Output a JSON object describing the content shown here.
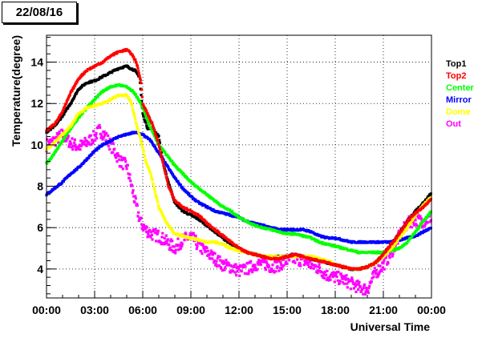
{
  "header": {
    "date_label": "22/08/16"
  },
  "chart_data": {
    "type": "scatter",
    "title": "",
    "xlabel": "Universal Time",
    "ylabel": "Temperature(degree)",
    "xlim": [
      0,
      24
    ],
    "ylim": [
      2.6,
      15.3
    ],
    "x_unit": "hours (UT)",
    "x_ticks": [
      {
        "v": 0,
        "label": "00:00"
      },
      {
        "v": 3,
        "label": "03:00"
      },
      {
        "v": 6,
        "label": "06:00"
      },
      {
        "v": 9,
        "label": "09:00"
      },
      {
        "v": 12,
        "label": "12:00"
      },
      {
        "v": 15,
        "label": "15:00"
      },
      {
        "v": 18,
        "label": "18:00"
      },
      {
        "v": 21,
        "label": "21:00"
      },
      {
        "v": 24,
        "label": "00:00"
      }
    ],
    "y_ticks": [
      4,
      6,
      8,
      10,
      12,
      14
    ],
    "grid": true,
    "legend_placement": "right",
    "series": [
      {
        "name": "Top1",
        "color": "#000000",
        "x": [
          0,
          0.5,
          1,
          1.5,
          2,
          2.5,
          3,
          3.5,
          4,
          4.5,
          5,
          5.5,
          5.8,
          6,
          6.3,
          6.6,
          7,
          7.3,
          7.6,
          8,
          8.5,
          9,
          9.5,
          10,
          10.5,
          11,
          11.5,
          12,
          12.5,
          13,
          13.5,
          14,
          14.5,
          15,
          15.5,
          16,
          16.5,
          17,
          17.5,
          18,
          18.5,
          19,
          19.5,
          20,
          20.5,
          21,
          21.5,
          22,
          22.5,
          23,
          23.5,
          24
        ],
        "y": [
          10.6,
          10.9,
          11.4,
          12.0,
          12.7,
          13.0,
          13.1,
          13.3,
          13.5,
          13.7,
          13.8,
          13.6,
          13.3,
          11.5,
          10.8,
          10.8,
          10.4,
          9.0,
          8.2,
          7.2,
          6.8,
          6.6,
          6.4,
          6.1,
          5.8,
          5.5,
          5.2,
          5.0,
          4.8,
          4.7,
          4.6,
          4.6,
          4.6,
          4.6,
          4.7,
          4.6,
          4.5,
          4.4,
          4.3,
          4.2,
          4.1,
          4.0,
          4.0,
          4.1,
          4.3,
          4.7,
          5.2,
          5.7,
          6.3,
          6.8,
          7.2,
          7.7
        ]
      },
      {
        "name": "Top2",
        "color": "#ff0000",
        "x": [
          0,
          0.5,
          1,
          1.5,
          2,
          2.5,
          3,
          3.5,
          4,
          4.5,
          5,
          5.3,
          5.6,
          5.9,
          6,
          6.3,
          6.6,
          7,
          7.3,
          7.6,
          8,
          8.5,
          9,
          9.5,
          10,
          10.5,
          11,
          11.5,
          12,
          12.5,
          13,
          13.5,
          14,
          14.5,
          15,
          15.5,
          16,
          16.5,
          17,
          17.5,
          18,
          18.5,
          19,
          19.5,
          20,
          20.5,
          21,
          21.5,
          22,
          22.5,
          23,
          23.5,
          24
        ],
        "y": [
          10.7,
          11.0,
          11.6,
          12.5,
          13.2,
          13.6,
          13.8,
          14.0,
          14.3,
          14.5,
          14.6,
          14.4,
          14.0,
          13.0,
          12.0,
          11.5,
          11.0,
          10.0,
          9.0,
          8.0,
          7.3,
          7.0,
          6.8,
          6.6,
          6.2,
          5.9,
          5.6,
          5.3,
          5.0,
          4.8,
          4.7,
          4.6,
          4.5,
          4.5,
          4.6,
          4.7,
          4.6,
          4.5,
          4.4,
          4.3,
          4.2,
          4.1,
          4.0,
          4.0,
          4.1,
          4.3,
          4.7,
          5.2,
          5.7,
          6.3,
          6.7,
          7.0,
          7.4
        ]
      },
      {
        "name": "Center",
        "color": "#00ff00",
        "x": [
          0,
          0.5,
          1,
          1.5,
          2,
          2.5,
          3,
          3.5,
          4,
          4.5,
          5,
          5.5,
          6,
          6.5,
          7,
          7.5,
          8,
          8.5,
          9,
          9.5,
          10,
          10.5,
          11,
          11.5,
          12,
          12.5,
          13,
          13.5,
          14,
          14.5,
          15,
          15.5,
          16,
          16.5,
          17,
          17.5,
          18,
          18.5,
          19,
          19.5,
          20,
          20.5,
          21,
          21.5,
          22,
          22.5,
          23,
          23.5,
          24
        ],
        "y": [
          9.1,
          9.6,
          10.2,
          10.8,
          11.3,
          11.8,
          12.2,
          12.6,
          12.8,
          12.9,
          12.8,
          12.5,
          11.8,
          10.8,
          10.0,
          9.5,
          9.0,
          8.6,
          8.2,
          7.9,
          7.6,
          7.3,
          7.0,
          6.8,
          6.5,
          6.3,
          6.1,
          6.0,
          5.9,
          5.8,
          5.7,
          5.7,
          5.6,
          5.5,
          5.3,
          5.2,
          5.1,
          5.0,
          4.9,
          4.8,
          4.8,
          4.8,
          4.8,
          4.9,
          5.0,
          5.3,
          5.8,
          6.3,
          6.8
        ]
      },
      {
        "name": "Mirror",
        "color": "#0000ff",
        "x": [
          0,
          0.5,
          1,
          1.5,
          2,
          2.5,
          3,
          3.5,
          4,
          4.5,
          5,
          5.5,
          6,
          6.5,
          7,
          7.5,
          8,
          8.5,
          9,
          9.5,
          10,
          10.5,
          11,
          11.5,
          12,
          12.5,
          13,
          13.5,
          14,
          14.5,
          15,
          15.5,
          16,
          16.5,
          17,
          17.5,
          18,
          18.5,
          19,
          19.5,
          20,
          20.5,
          21,
          21.5,
          22,
          22.5,
          23,
          23.5,
          24
        ],
        "y": [
          7.6,
          7.9,
          8.2,
          8.6,
          8.9,
          9.3,
          9.7,
          10.0,
          10.2,
          10.4,
          10.5,
          10.6,
          10.5,
          10.2,
          9.6,
          9.0,
          8.4,
          7.9,
          7.5,
          7.2,
          7.0,
          6.8,
          6.7,
          6.6,
          6.5,
          6.3,
          6.2,
          6.1,
          6.0,
          5.9,
          5.9,
          5.9,
          5.9,
          5.8,
          5.6,
          5.5,
          5.5,
          5.4,
          5.3,
          5.3,
          5.3,
          5.3,
          5.3,
          5.3,
          5.4,
          5.5,
          5.6,
          5.8,
          6.0
        ]
      },
      {
        "name": "Dome",
        "color": "#ffff00",
        "x": [
          0,
          0.5,
          1,
          1.5,
          2,
          2.5,
          3,
          3.5,
          4,
          4.5,
          5,
          5.3,
          5.6,
          5.9,
          6.2,
          6.5,
          7,
          7.5,
          8,
          8.5,
          9,
          9.5,
          10,
          10.5,
          11,
          11.5,
          12,
          12.5,
          13,
          13.5,
          14,
          14.5,
          15,
          15.5,
          16,
          16.5,
          17,
          17.5,
          18,
          18.5,
          19,
          19.5,
          20,
          20.5,
          21,
          21.5,
          22,
          22.5,
          23,
          23.5,
          24
        ],
        "y": [
          9.8,
          10.1,
          10.5,
          10.9,
          11.5,
          11.8,
          11.9,
          12.0,
          12.2,
          12.4,
          12.4,
          12.0,
          11.0,
          10.2,
          9.2,
          8.6,
          7.0,
          6.2,
          5.7,
          5.6,
          5.5,
          5.4,
          5.3,
          5.3,
          5.2,
          5.0,
          4.9,
          4.8,
          4.7,
          4.6,
          4.6,
          4.6,
          4.6,
          4.6,
          4.6,
          4.6,
          4.5,
          4.4,
          4.2,
          4.1,
          4.0,
          4.0,
          4.1,
          4.3,
          4.6,
          5.0,
          5.5,
          6.0,
          6.6,
          7.1,
          7.5
        ]
      },
      {
        "name": "Out",
        "color": "#ff00ff",
        "x": [
          0,
          0.5,
          1,
          1.5,
          2,
          2.5,
          3,
          3.3,
          3.6,
          4,
          4.3,
          4.6,
          5,
          5.3,
          5.6,
          5.9,
          6.2,
          6.5,
          7,
          7.5,
          8,
          8.5,
          9,
          9.5,
          10,
          10.5,
          11,
          11.5,
          12,
          12.5,
          13,
          13.5,
          14,
          14.5,
          15,
          15.5,
          16,
          16.5,
          17,
          17.5,
          18,
          18.5,
          19,
          19.5,
          20,
          20.5,
          21,
          21.5,
          22,
          22.5,
          23,
          23.5,
          24
        ],
        "y": [
          10.0,
          10.2,
          10.5,
          10.1,
          9.9,
          10.1,
          10.4,
          10.7,
          10.5,
          10.0,
          9.6,
          9.2,
          9.0,
          8.0,
          7.0,
          6.2,
          5.9,
          5.7,
          5.6,
          5.3,
          5.0,
          5.4,
          5.6,
          5.1,
          4.8,
          4.5,
          4.2,
          4.1,
          3.9,
          4.0,
          4.2,
          4.3,
          4.1,
          4.2,
          4.4,
          4.5,
          4.4,
          4.2,
          4.0,
          3.7,
          3.6,
          3.5,
          3.3,
          3.1,
          3.0,
          3.8,
          4.2,
          4.8,
          5.6,
          6.2,
          6.4,
          6.3,
          6.5
        ]
      }
    ]
  }
}
